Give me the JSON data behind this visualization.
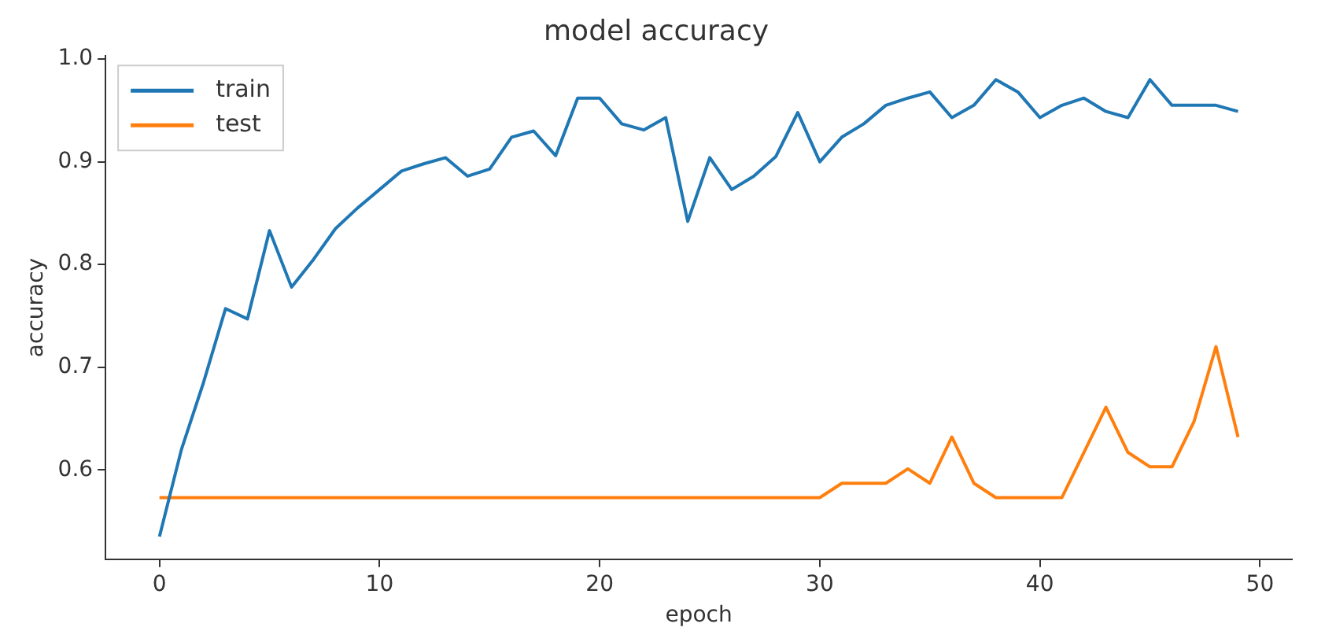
{
  "chart_data": {
    "type": "line",
    "title": "model accuracy",
    "xlabel": "epoch",
    "ylabel": "accuracy",
    "x": [
      0,
      1,
      2,
      3,
      4,
      5,
      6,
      7,
      8,
      9,
      10,
      11,
      12,
      13,
      14,
      15,
      16,
      17,
      18,
      19,
      20,
      21,
      22,
      23,
      24,
      25,
      26,
      27,
      28,
      29,
      30,
      31,
      32,
      33,
      34,
      35,
      36,
      37,
      38,
      39,
      40,
      41,
      42,
      43,
      44,
      45,
      46,
      47,
      48,
      49
    ],
    "series": [
      {
        "name": "train",
        "color": "#1f77b4",
        "values": [
          0.535,
          0.62,
          0.685,
          0.757,
          0.747,
          0.833,
          0.778,
          0.805,
          0.835,
          0.855,
          0.873,
          0.891,
          0.898,
          0.904,
          0.886,
          0.893,
          0.924,
          0.93,
          0.906,
          0.962,
          0.962,
          0.937,
          0.931,
          0.943,
          0.842,
          0.904,
          0.873,
          0.886,
          0.905,
          0.948,
          0.9,
          0.924,
          0.937,
          0.955,
          0.962,
          0.968,
          0.943,
          0.955,
          0.98,
          0.968,
          0.943,
          0.955,
          0.962,
          0.949,
          0.943,
          0.98,
          0.955,
          0.955,
          0.955,
          0.949
        ]
      },
      {
        "name": "test",
        "color": "#ff7f0e",
        "values": [
          0.573,
          0.573,
          0.573,
          0.573,
          0.573,
          0.573,
          0.573,
          0.573,
          0.573,
          0.573,
          0.573,
          0.573,
          0.573,
          0.573,
          0.573,
          0.573,
          0.573,
          0.573,
          0.573,
          0.573,
          0.573,
          0.573,
          0.573,
          0.573,
          0.573,
          0.573,
          0.573,
          0.573,
          0.573,
          0.573,
          0.573,
          0.587,
          0.587,
          0.587,
          0.601,
          0.587,
          0.632,
          0.587,
          0.573,
          0.573,
          0.573,
          0.573,
          0.617,
          0.661,
          0.617,
          0.603,
          0.603,
          0.647,
          0.72,
          0.632
        ]
      }
    ],
    "xlim": [
      -2.45,
      51.45
    ],
    "xticks": [
      0,
      10,
      20,
      30,
      40,
      50
    ],
    "ylim": [
      0.513,
      1.003
    ],
    "yticks": [
      0.6,
      0.7,
      0.8,
      0.9,
      {
        "value": 1,
        "label": "1.0"
      }
    ],
    "grid": false,
    "legend": "top left",
    "marker": "none",
    "line_style": "solid"
  }
}
